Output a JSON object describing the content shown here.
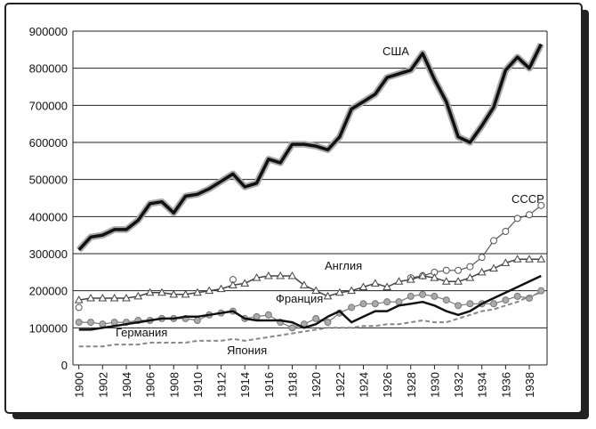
{
  "chart_data": {
    "type": "line",
    "x": [
      1900,
      1901,
      1902,
      1903,
      1904,
      1905,
      1906,
      1907,
      1908,
      1909,
      1910,
      1911,
      1912,
      1913,
      1914,
      1915,
      1916,
      1917,
      1918,
      1919,
      1920,
      1921,
      1922,
      1923,
      1924,
      1925,
      1926,
      1927,
      1928,
      1929,
      1930,
      1931,
      1932,
      1933,
      1934,
      1935,
      1936,
      1937,
      1938,
      1939
    ],
    "xlim": [
      1899.5,
      1939.5
    ],
    "xticks": [
      1900,
      1902,
      1904,
      1906,
      1908,
      1910,
      1912,
      1914,
      1916,
      1918,
      1920,
      1922,
      1924,
      1926,
      1928,
      1930,
      1932,
      1934,
      1936,
      1938
    ],
    "ylim": [
      0,
      900000
    ],
    "yticks": [
      0,
      100000,
      200000,
      300000,
      400000,
      500000,
      600000,
      700000,
      800000,
      900000
    ],
    "grid": true,
    "series": [
      {
        "name": "США",
        "color": "#111111",
        "values": [
          310000,
          345000,
          350000,
          365000,
          365000,
          390000,
          435000,
          440000,
          410000,
          455000,
          460000,
          475000,
          495000,
          515000,
          480000,
          490000,
          555000,
          545000,
          595000,
          595000,
          590000,
          580000,
          615000,
          690000,
          710000,
          730000,
          775000,
          785000,
          795000,
          840000,
          770000,
          710000,
          615000,
          600000,
          645000,
          695000,
          795000,
          830000,
          800000,
          865000
        ]
      },
      {
        "name": "СССР",
        "color": "#555555",
        "values": [
          155000,
          null,
          null,
          null,
          null,
          null,
          null,
          null,
          null,
          null,
          null,
          null,
          null,
          230000,
          null,
          null,
          null,
          null,
          null,
          null,
          null,
          null,
          null,
          null,
          null,
          null,
          null,
          null,
          235000,
          240000,
          250000,
          255000,
          255000,
          265000,
          290000,
          335000,
          360000,
          395000,
          405000,
          430000
        ]
      },
      {
        "name": "Англия",
        "color": "#444444",
        "values": [
          175000,
          180000,
          180000,
          180000,
          180000,
          185000,
          195000,
          195000,
          190000,
          190000,
          195000,
          200000,
          205000,
          215000,
          220000,
          235000,
          240000,
          240000,
          240000,
          215000,
          200000,
          185000,
          195000,
          200000,
          210000,
          220000,
          210000,
          225000,
          230000,
          240000,
          235000,
          225000,
          225000,
          235000,
          250000,
          260000,
          275000,
          285000,
          285000,
          285000
        ]
      },
      {
        "name": "Франция",
        "color": "#777777",
        "values": [
          115000,
          115000,
          110000,
          115000,
          115000,
          120000,
          120000,
          125000,
          125000,
          125000,
          120000,
          135000,
          140000,
          145000,
          125000,
          130000,
          135000,
          115000,
          100000,
          110000,
          125000,
          115000,
          140000,
          155000,
          165000,
          165000,
          170000,
          170000,
          185000,
          190000,
          185000,
          175000,
          160000,
          165000,
          165000,
          165000,
          175000,
          185000,
          180000,
          200000
        ]
      },
      {
        "name": "Германия",
        "color": "#111111",
        "values": [
          95000,
          95000,
          100000,
          105000,
          110000,
          115000,
          120000,
          125000,
          125000,
          130000,
          130000,
          135000,
          140000,
          145000,
          125000,
          120000,
          120000,
          120000,
          115000,
          100000,
          110000,
          130000,
          145000,
          115000,
          130000,
          145000,
          145000,
          160000,
          165000,
          170000,
          160000,
          145000,
          135000,
          145000,
          165000,
          180000,
          195000,
          210000,
          225000,
          240000
        ]
      },
      {
        "name": "Япония",
        "color": "#888888",
        "values": [
          50000,
          50000,
          50000,
          55000,
          55000,
          55000,
          60000,
          60000,
          60000,
          60000,
          65000,
          65000,
          65000,
          70000,
          65000,
          70000,
          75000,
          80000,
          85000,
          90000,
          95000,
          100000,
          100000,
          100000,
          105000,
          105000,
          110000,
          110000,
          115000,
          120000,
          115000,
          115000,
          125000,
          135000,
          145000,
          150000,
          160000,
          170000,
          185000,
          195000
        ]
      }
    ]
  }
}
